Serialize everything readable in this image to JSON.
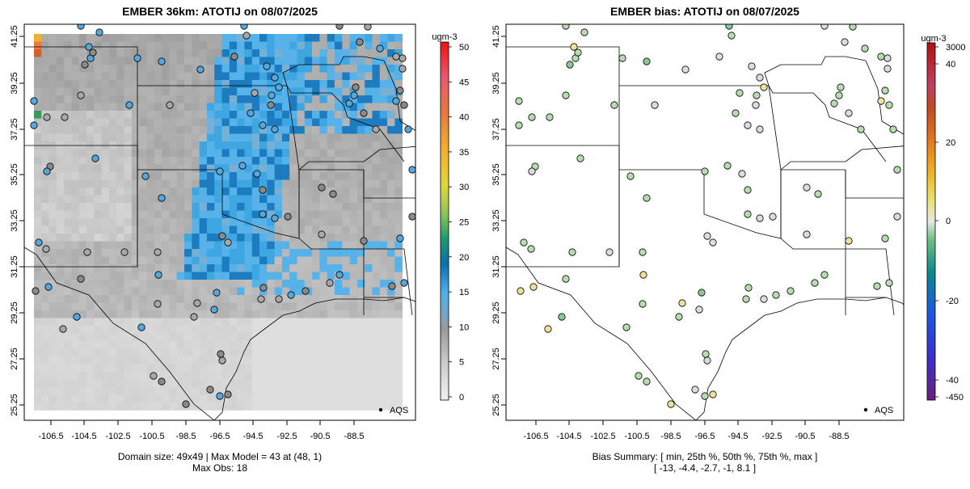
{
  "left_panel": {
    "title": "EMBER 36km: ATOTIJ on 08/07/2025",
    "footer_line1": "Domain size: 49x49 | Max Model = 43 at (48, 1)",
    "footer_line2": "Max Obs: 18",
    "legend_label": "AQS",
    "colorbar_unit": "ugm-3",
    "colorbar_ticks": [
      "0",
      "5",
      "10",
      "15",
      "20",
      "25",
      "30",
      "35",
      "40",
      "45",
      "50"
    ]
  },
  "right_panel": {
    "title": "EMBER bias: ATOTIJ on 08/07/2025",
    "footer_line1": "Bias Summary: [ min, 25th %, 50th %, 75th %, max ]",
    "footer_line2": "[ -13,   -4.4,   -2.7,   -1,   8.1 ]",
    "legend_label": "AQS",
    "colorbar_unit": "ugm-3",
    "colorbar_ticks": [
      "3000",
      "40",
      "20",
      "0",
      "-20",
      "-40",
      "-450"
    ]
  },
  "axes": {
    "x_ticks": [
      "-106.5",
      "-104.5",
      "-102.5",
      "-100.5",
      "-98.5",
      "-96.5",
      "-94.5",
      "-92.5",
      "-90.5",
      "-88.5"
    ],
    "y_ticks": [
      "41.25",
      "39.25",
      "37.25",
      "35.25",
      "33.25",
      "31.25",
      "29.25",
      "27.25",
      "25.25"
    ]
  },
  "chart_data": [
    {
      "type": "heatmap",
      "title": "EMBER 36km: ATOTIJ on 08/07/2025",
      "value_range": [
        0,
        50
      ],
      "grid": "49x49",
      "max_model": 43,
      "max_obs": 18,
      "legend": "AQS"
    },
    {
      "type": "scatter",
      "title": "EMBER bias: ATOTIJ on 08/07/2025",
      "bias_summary": {
        "min": -13,
        "p25": -4.4,
        "p50": -2.7,
        "p75": -1,
        "max": 8.1
      },
      "legend": "AQS"
    }
  ],
  "colors": {
    "bias_neutral": "#e0e0e0",
    "bias_negative": "#b6dcb0",
    "bias_positive": "#efe39a",
    "model_blue": "#5fb4e6"
  }
}
